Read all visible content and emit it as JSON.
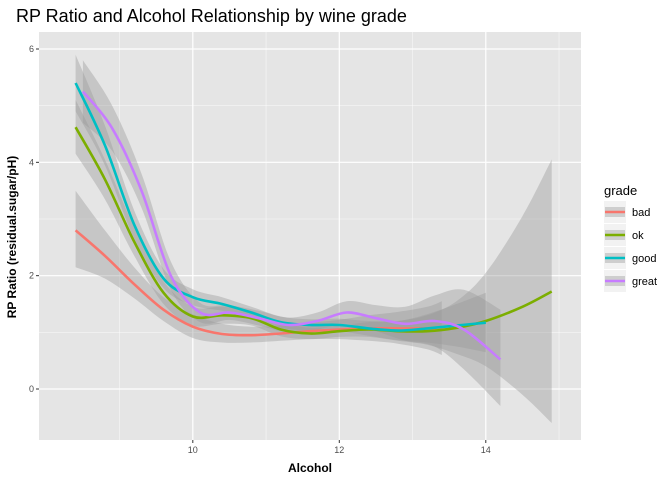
{
  "chart_data": {
    "type": "line",
    "title": "RP Ratio and Alcohol Relationship by wine grade",
    "xlabel": "Alcohol",
    "ylabel": "RP Ratio (residual.sugar/pH)",
    "xlim": [
      7.9,
      15.3
    ],
    "ylim": [
      -0.9,
      6.3
    ],
    "x_ticks": [
      10,
      12,
      14
    ],
    "y_ticks": [
      0,
      2,
      4,
      6
    ],
    "grid": true,
    "legend": {
      "title": "grade",
      "position": "right"
    },
    "colors": {
      "panel": "#E5E5E5",
      "grid_major": "#FFFFFF",
      "ribbon": "#999999",
      "bad": "#F8766D",
      "ok": "#7CAE00",
      "good": "#00BFC4",
      "great": "#C77CFF"
    },
    "series": [
      {
        "name": "bad",
        "color": "#F8766D",
        "x": [
          8.4,
          8.8,
          9.2,
          9.6,
          10.0,
          10.4,
          10.8,
          11.2,
          11.6,
          12.0,
          12.4,
          12.8,
          13.2,
          13.4
        ],
        "y": [
          2.8,
          2.35,
          1.85,
          1.4,
          1.1,
          0.97,
          0.95,
          0.98,
          1.02,
          1.05,
          1.07,
          1.07,
          1.07,
          1.08
        ],
        "lower": [
          2.15,
          1.95,
          1.6,
          1.2,
          0.9,
          0.82,
          0.82,
          0.85,
          0.88,
          0.88,
          0.85,
          0.8,
          0.7,
          0.6
        ],
        "upper": [
          3.5,
          2.8,
          2.15,
          1.62,
          1.32,
          1.15,
          1.1,
          1.12,
          1.17,
          1.22,
          1.3,
          1.36,
          1.45,
          1.55
        ]
      },
      {
        "name": "ok",
        "color": "#7CAE00",
        "x": [
          8.4,
          8.8,
          9.2,
          9.6,
          10.0,
          10.4,
          10.8,
          11.2,
          11.6,
          12.0,
          12.4,
          12.8,
          13.2,
          13.6,
          14.0,
          14.5,
          14.9
        ],
        "y": [
          4.62,
          3.7,
          2.6,
          1.7,
          1.28,
          1.3,
          1.25,
          1.05,
          0.98,
          1.02,
          1.05,
          1.02,
          1.02,
          1.08,
          1.2,
          1.45,
          1.72
        ],
        "lower": [
          4.15,
          3.35,
          2.35,
          1.5,
          1.12,
          1.15,
          1.12,
          0.93,
          0.88,
          0.92,
          0.92,
          0.85,
          0.78,
          0.62,
          0.4,
          -0.1,
          -0.6
        ],
        "upper": [
          5.1,
          4.05,
          2.85,
          1.9,
          1.45,
          1.45,
          1.38,
          1.18,
          1.08,
          1.12,
          1.18,
          1.2,
          1.3,
          1.55,
          2.05,
          3.05,
          4.05
        ]
      },
      {
        "name": "good",
        "color": "#00BFC4",
        "x": [
          8.4,
          8.8,
          9.2,
          9.6,
          10.0,
          10.4,
          10.8,
          11.2,
          11.6,
          12.0,
          12.4,
          12.8,
          13.2,
          13.6,
          14.0
        ],
        "y": [
          5.4,
          4.3,
          2.9,
          1.95,
          1.62,
          1.5,
          1.35,
          1.18,
          1.13,
          1.13,
          1.07,
          1.03,
          1.07,
          1.12,
          1.17
        ],
        "lower": [
          4.9,
          3.95,
          2.65,
          1.78,
          1.48,
          1.38,
          1.25,
          1.08,
          1.03,
          1.02,
          0.94,
          0.86,
          0.82,
          0.75,
          0.65
        ],
        "upper": [
          5.9,
          4.65,
          3.15,
          2.12,
          1.76,
          1.62,
          1.45,
          1.28,
          1.23,
          1.24,
          1.2,
          1.2,
          1.32,
          1.5,
          1.7
        ]
      },
      {
        "name": "great",
        "color": "#C77CFF",
        "x": [
          8.5,
          8.9,
          9.3,
          9.7,
          10.1,
          10.5,
          10.9,
          11.3,
          11.7,
          12.1,
          12.5,
          12.9,
          13.3,
          13.7,
          14.2
        ],
        "y": [
          5.25,
          4.6,
          3.5,
          2.0,
          1.35,
          1.35,
          1.25,
          1.13,
          1.2,
          1.35,
          1.25,
          1.15,
          1.2,
          1.05,
          0.52
        ],
        "lower": [
          4.7,
          4.2,
          3.2,
          1.75,
          1.18,
          1.22,
          1.12,
          1.0,
          1.05,
          1.15,
          1.02,
          0.85,
          0.75,
          0.35,
          -0.3
        ],
        "upper": [
          5.8,
          5.0,
          3.8,
          2.25,
          1.52,
          1.48,
          1.38,
          1.26,
          1.35,
          1.55,
          1.48,
          1.45,
          1.65,
          1.75,
          1.4
        ]
      }
    ]
  }
}
